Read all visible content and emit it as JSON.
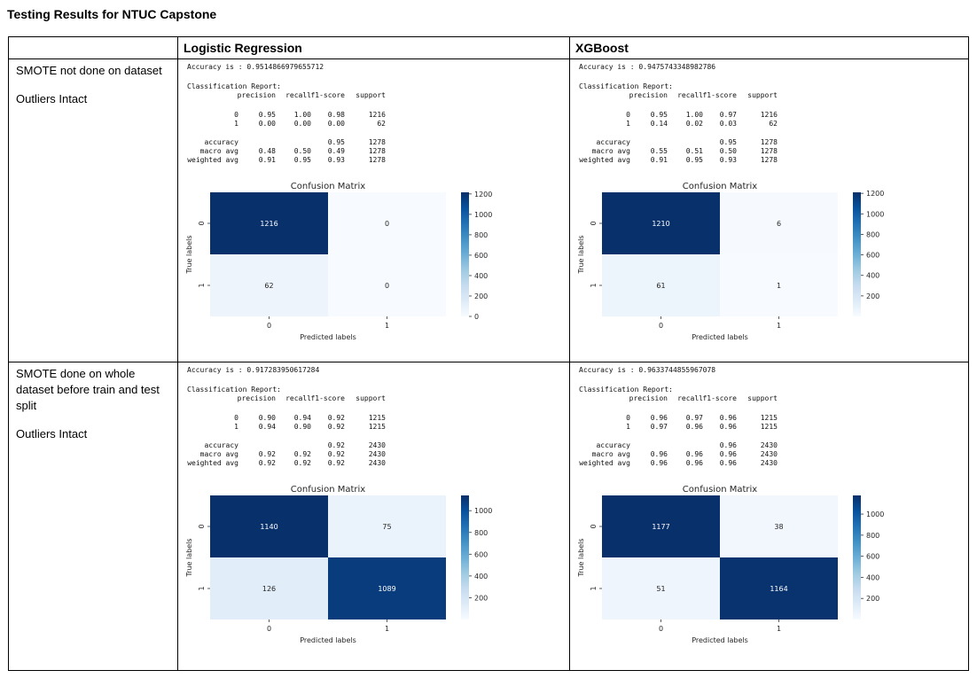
{
  "title": "Testing Results for NTUC Capstone",
  "headers": {
    "c1": "",
    "c2": "Logistic Regression",
    "c3": "XGBoost"
  },
  "rows": [
    {
      "label": [
        "SMOTE not done on dataset",
        "Outliers Intact"
      ],
      "panels": [
        {
          "accuracy_line": "Accuracy is : 0.9514866979655712",
          "report_title": "Classification Report:",
          "cols": [
            "precision",
            "recall",
            "f1-score",
            "support"
          ],
          "report": [
            {
              "name": "0",
              "v": [
                "0.95",
                "1.00",
                "0.98",
                "1216"
              ]
            },
            {
              "name": "1",
              "v": [
                "0.00",
                "0.00",
                "0.00",
                "62"
              ]
            },
            {
              "name": "accuracy",
              "v": [
                "",
                "",
                "0.95",
                "1278"
              ]
            },
            {
              "name": "macro avg",
              "v": [
                "0.48",
                "0.50",
                "0.49",
                "1278"
              ]
            },
            {
              "name": "weighted avg",
              "v": [
                "0.91",
                "0.95",
                "0.93",
                "1278"
              ]
            }
          ],
          "cm": {
            "title": "Confusion Matrix",
            "xlabel": "Predicted labels",
            "ylabel": "True labels",
            "ticks": [
              "0",
              "1"
            ],
            "values": [
              [
                1216,
                0
              ],
              [
                62,
                0
              ]
            ],
            "cbar_max": 1216,
            "cbar_ticks": [
              "0",
              "200",
              "400",
              "600",
              "800",
              "1000",
              "1200"
            ]
          }
        },
        {
          "accuracy_line": "Accuracy is : 0.9475743348982786",
          "report_title": "Classification Report:",
          "cols": [
            "precision",
            "recall",
            "f1-score",
            "support"
          ],
          "report": [
            {
              "name": "0",
              "v": [
                "0.95",
                "1.00",
                "0.97",
                "1216"
              ]
            },
            {
              "name": "1",
              "v": [
                "0.14",
                "0.02",
                "0.03",
                "62"
              ]
            },
            {
              "name": "accuracy",
              "v": [
                "",
                "",
                "0.95",
                "1278"
              ]
            },
            {
              "name": "macro avg",
              "v": [
                "0.55",
                "0.51",
                "0.50",
                "1278"
              ]
            },
            {
              "name": "weighted avg",
              "v": [
                "0.91",
                "0.95",
                "0.93",
                "1278"
              ]
            }
          ],
          "cm": {
            "title": "Confusion Matrix",
            "xlabel": "Predicted labels",
            "ylabel": "True labels",
            "ticks": [
              "0",
              "1"
            ],
            "values": [
              [
                1210,
                6
              ],
              [
                61,
                1
              ]
            ],
            "cbar_max": 1210,
            "cbar_ticks": [
              "200",
              "400",
              "600",
              "800",
              "1000",
              "1200"
            ]
          }
        }
      ]
    },
    {
      "label": [
        "SMOTE done on whole dataset before train and test split",
        "Outliers Intact"
      ],
      "panels": [
        {
          "accuracy_line": "Accuracy is : 0.917283950617284",
          "report_title": "Classification Report:",
          "cols": [
            "precision",
            "recall",
            "f1-score",
            "support"
          ],
          "report": [
            {
              "name": "0",
              "v": [
                "0.90",
                "0.94",
                "0.92",
                "1215"
              ]
            },
            {
              "name": "1",
              "v": [
                "0.94",
                "0.90",
                "0.92",
                "1215"
              ]
            },
            {
              "name": "accuracy",
              "v": [
                "",
                "",
                "0.92",
                "2430"
              ]
            },
            {
              "name": "macro avg",
              "v": [
                "0.92",
                "0.92",
                "0.92",
                "2430"
              ]
            },
            {
              "name": "weighted avg",
              "v": [
                "0.92",
                "0.92",
                "0.92",
                "2430"
              ]
            }
          ],
          "cm": {
            "title": "Confusion Matrix",
            "xlabel": "Predicted labels",
            "ylabel": "True labels",
            "ticks": [
              "0",
              "1"
            ],
            "values": [
              [
                1140,
                75
              ],
              [
                126,
                1089
              ]
            ],
            "cbar_max": 1140,
            "cbar_ticks": [
              "200",
              "400",
              "600",
              "800",
              "1000"
            ]
          }
        },
        {
          "accuracy_line": "Accuracy is : 0.9633744855967078",
          "report_title": "Classification Report:",
          "cols": [
            "precision",
            "recall",
            "f1-score",
            "support"
          ],
          "report": [
            {
              "name": "0",
              "v": [
                "0.96",
                "0.97",
                "0.96",
                "1215"
              ]
            },
            {
              "name": "1",
              "v": [
                "0.97",
                "0.96",
                "0.96",
                "1215"
              ]
            },
            {
              "name": "accuracy",
              "v": [
                "",
                "",
                "0.96",
                "2430"
              ]
            },
            {
              "name": "macro avg",
              "v": [
                "0.96",
                "0.96",
                "0.96",
                "2430"
              ]
            },
            {
              "name": "weighted avg",
              "v": [
                "0.96",
                "0.96",
                "0.96",
                "2430"
              ]
            }
          ],
          "cm": {
            "title": "Confusion Matrix",
            "xlabel": "Predicted labels",
            "ylabel": "True labels",
            "ticks": [
              "0",
              "1"
            ],
            "values": [
              [
                1177,
                38
              ],
              [
                51,
                1164
              ]
            ],
            "cbar_max": 1177,
            "cbar_ticks": [
              "200",
              "400",
              "600",
              "800",
              "1000"
            ]
          }
        }
      ]
    }
  ],
  "colors": {
    "light": "#f7fbff",
    "dark": "#08306b",
    "text_on_dark": "#ffffff",
    "text_on_light": "#262626"
  }
}
